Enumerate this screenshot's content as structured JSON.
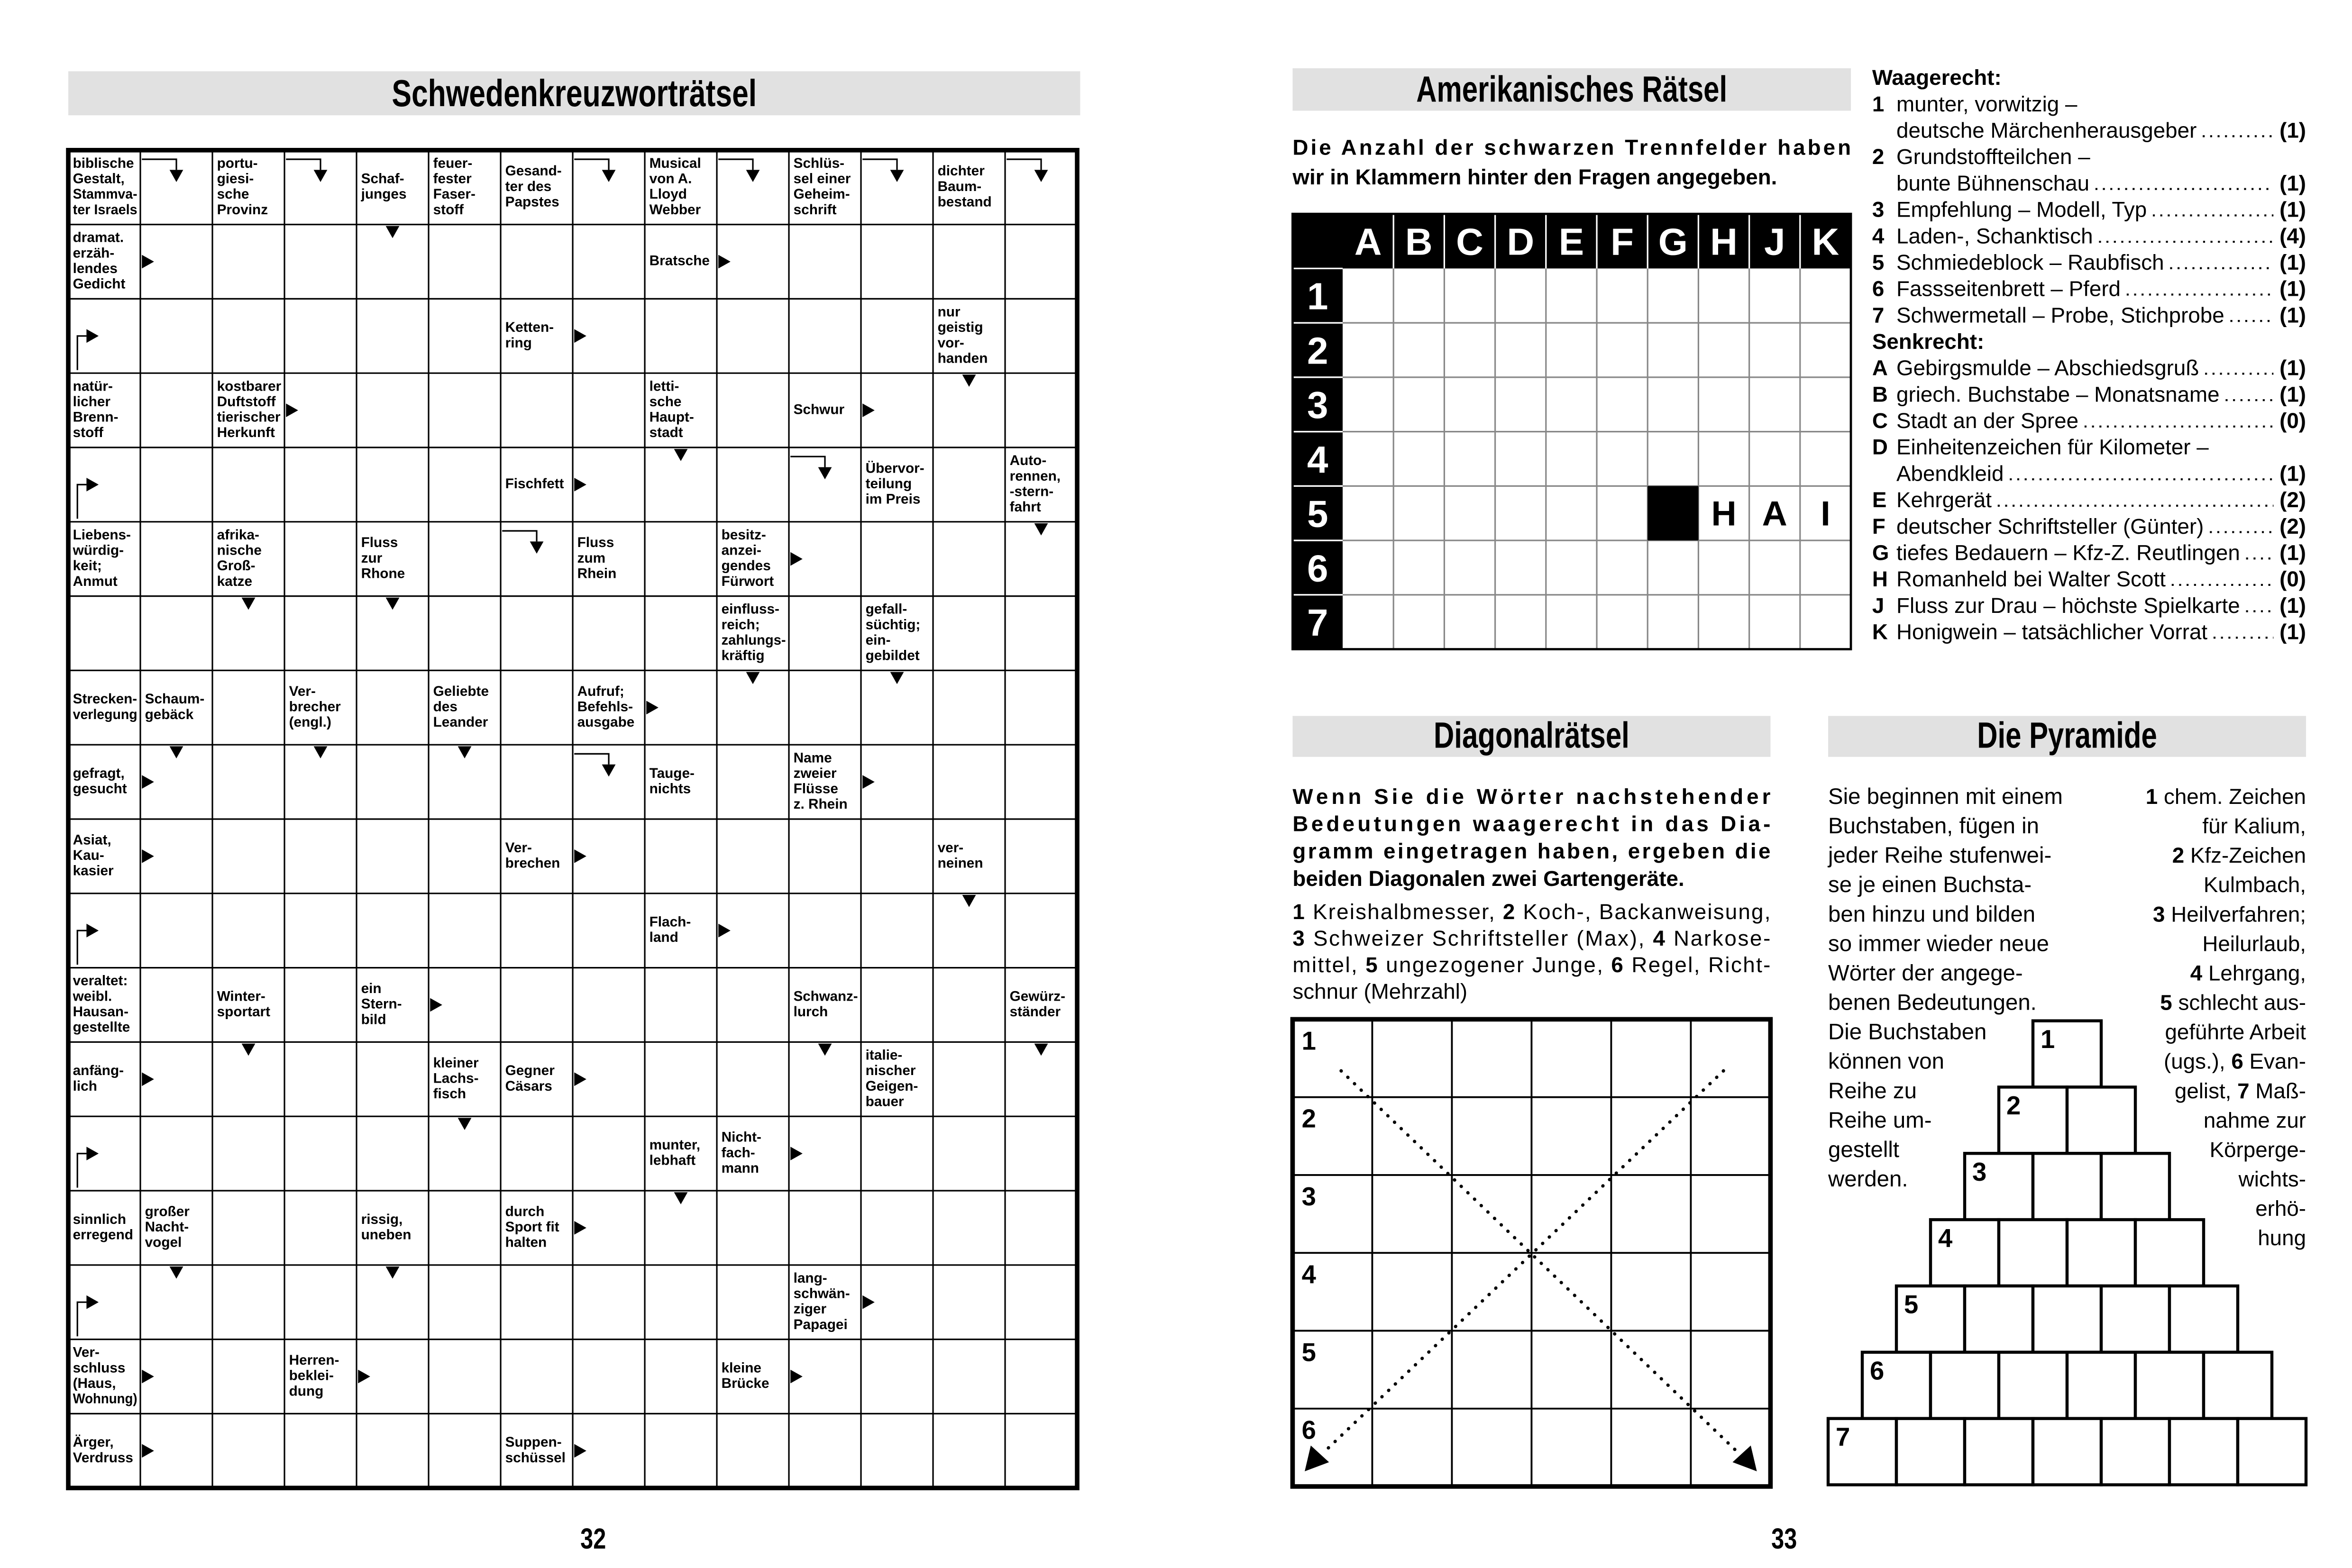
{
  "left_page": {
    "title": "Schwedenkreuzworträtsel",
    "page_number": "32",
    "crossword": {
      "rows": [
        [
          [
            "biblische",
            "Gestalt,",
            "Stammva-",
            "ter Israels"
          ],
          null,
          [
            "portu-",
            "giesi-",
            "sche",
            "Provinz"
          ],
          null,
          [
            "Schaf-",
            "junges"
          ],
          [
            "feuer-",
            "fester",
            "Faser-",
            "stoff"
          ],
          [
            "Gesand-",
            "ter des",
            "Papstes"
          ],
          null,
          [
            "Musical",
            "von A.",
            "Lloyd",
            "Webber"
          ],
          null,
          [
            "Schlüs-",
            "sel einer",
            "Geheim-",
            "schrift"
          ],
          null,
          [
            "dichter",
            "Baum-",
            "bestand"
          ],
          null
        ],
        [
          [
            "dramat.",
            "erzäh-",
            "lendes",
            "Gedicht"
          ],
          null,
          null,
          null,
          null,
          null,
          null,
          null,
          [
            "Bratsche"
          ],
          null,
          null,
          null,
          null,
          null
        ],
        [
          null,
          null,
          null,
          null,
          null,
          null,
          [
            "Ketten-",
            "ring"
          ],
          null,
          null,
          null,
          null,
          null,
          [
            "nur",
            "geistig",
            "vor-",
            "handen"
          ],
          null
        ],
        [
          [
            "natür-",
            "licher",
            "Brenn-",
            "stoff"
          ],
          null,
          [
            "kostbarer",
            "Duftstoff",
            "tierischer",
            "Herkunft"
          ],
          null,
          null,
          null,
          null,
          null,
          [
            "letti-",
            "sche",
            "Haupt-",
            "stadt"
          ],
          null,
          [
            "Schwur"
          ],
          null,
          null,
          null
        ],
        [
          null,
          null,
          null,
          null,
          null,
          null,
          [
            "Fischfett"
          ],
          null,
          null,
          null,
          null,
          [
            "Übervor-",
            "teilung",
            "im Preis"
          ],
          null,
          [
            "Auto-",
            "rennen,",
            "-stern-",
            "fahrt"
          ]
        ],
        [
          [
            "Liebens-",
            "würdig-",
            "keit;",
            "Anmut"
          ],
          null,
          [
            "afrika-",
            "nische",
            "Groß-",
            "katze"
          ],
          null,
          [
            "Fluss",
            "zur",
            "Rhone"
          ],
          null,
          null,
          [
            "Fluss",
            "zum",
            "Rhein"
          ],
          null,
          [
            "besitz-",
            "anzei-",
            "gendes",
            "Fürwort"
          ],
          null,
          null,
          null,
          null
        ],
        [
          null,
          null,
          null,
          null,
          null,
          null,
          null,
          null,
          null,
          [
            "einfluss-",
            "reich;",
            "zahlungs-",
            "kräftig"
          ],
          null,
          [
            "gefall-",
            "süchtig;",
            "ein-",
            "gebildet"
          ],
          null,
          null
        ],
        [
          [
            "Strecken-",
            "verlegung"
          ],
          [
            "Schaum-",
            "gebäck"
          ],
          null,
          [
            "Ver-",
            "brecher",
            "(engl.)"
          ],
          null,
          [
            "Geliebte",
            "des",
            "Leander"
          ],
          null,
          [
            "Aufruf;",
            "Befehls-",
            "ausgabe"
          ],
          null,
          null,
          null,
          null,
          null,
          null
        ],
        [
          [
            "gefragt,",
            "gesucht"
          ],
          null,
          null,
          null,
          null,
          null,
          null,
          null,
          [
            "Tauge-",
            "nichts"
          ],
          null,
          [
            "Name",
            "zweier",
            "Flüsse",
            "z. Rhein"
          ],
          null,
          null,
          null
        ],
        [
          [
            "Asiat,",
            "Kau-",
            "kasier"
          ],
          null,
          null,
          null,
          null,
          null,
          [
            "Ver-",
            "brechen"
          ],
          null,
          null,
          null,
          null,
          null,
          [
            "ver-",
            "neinen"
          ],
          null
        ],
        [
          null,
          null,
          null,
          null,
          null,
          null,
          null,
          null,
          [
            "Flach-",
            "land"
          ],
          null,
          null,
          null,
          null,
          null
        ],
        [
          [
            "veraltet:",
            "weibl.",
            "Hausan-",
            "gestellte"
          ],
          null,
          [
            "Winter-",
            "sportart"
          ],
          null,
          [
            "ein",
            "Stern-",
            "bild"
          ],
          null,
          null,
          null,
          null,
          null,
          [
            "Schwanz-",
            "lurch"
          ],
          null,
          null,
          [
            "Gewürz-",
            "ständer"
          ]
        ],
        [
          [
            "anfäng-",
            "lich"
          ],
          null,
          null,
          null,
          null,
          [
            "kleiner",
            "Lachs-",
            "fisch"
          ],
          [
            "Gegner",
            "Cäsars"
          ],
          null,
          null,
          null,
          null,
          [
            "italie-",
            "nischer",
            "Geigen-",
            "bauer"
          ],
          null,
          null
        ],
        [
          null,
          null,
          null,
          null,
          null,
          null,
          null,
          null,
          [
            "munter,",
            "lebhaft"
          ],
          [
            "Nicht-",
            "fach-",
            "mann"
          ],
          null,
          null,
          null,
          null
        ],
        [
          [
            "sinnlich",
            "erregend"
          ],
          [
            "großer",
            "Nacht-",
            "vogel"
          ],
          null,
          null,
          [
            "rissig,",
            "uneben"
          ],
          null,
          [
            "durch",
            "Sport fit",
            "halten"
          ],
          null,
          null,
          null,
          null,
          null,
          null,
          null
        ],
        [
          null,
          null,
          null,
          null,
          null,
          null,
          null,
          null,
          null,
          null,
          [
            "lang-",
            "schwän-",
            "ziger",
            "Papagei"
          ],
          null,
          null,
          null
        ],
        [
          [
            "Ver-",
            "schluss",
            "(Haus,",
            "Wohnung)"
          ],
          null,
          null,
          [
            "Herren-",
            "beklei-",
            "dung"
          ],
          null,
          null,
          null,
          null,
          null,
          [
            "kleine",
            "Brücke"
          ],
          null,
          null,
          null,
          null
        ],
        [
          [
            "Ärger,",
            "Verdruss"
          ],
          null,
          null,
          null,
          null,
          null,
          [
            "Suppen-",
            "schüssel"
          ],
          null,
          null,
          null,
          null,
          null,
          null,
          null
        ]
      ]
    }
  },
  "right_page": {
    "page_number": "33",
    "american": {
      "title": "Amerikanisches Rätsel",
      "intro": [
        "Die Anzahl der schwarzen Trennfelder haben",
        "wir in Klammern hinter den Fragen angegeben."
      ],
      "column_letters": [
        "A",
        "B",
        "C",
        "D",
        "E",
        "F",
        "G",
        "H",
        "J",
        "K"
      ],
      "row_labels": [
        "1",
        "2",
        "3",
        "4",
        "5",
        "6",
        "7"
      ],
      "grid": [
        [
          null,
          null,
          null,
          null,
          null,
          null,
          null,
          null,
          null,
          null
        ],
        [
          null,
          null,
          null,
          null,
          null,
          null,
          null,
          null,
          null,
          null
        ],
        [
          null,
          null,
          null,
          null,
          null,
          null,
          null,
          null,
          null,
          null
        ],
        [
          null,
          null,
          null,
          null,
          null,
          null,
          null,
          null,
          null,
          null
        ],
        [
          null,
          null,
          null,
          null,
          null,
          null,
          {
            "black": true
          },
          "H",
          "A",
          "I"
        ],
        [
          null,
          null,
          null,
          null,
          null,
          null,
          null,
          null,
          null,
          null
        ],
        [
          null,
          null,
          null,
          null,
          null,
          null,
          null,
          null,
          null,
          null
        ]
      ],
      "across": {
        "heading": "Waagerecht:",
        "entries": [
          {
            "number": "1",
            "lines": [
              "munter, vorwitzig –",
              "deutsche Märchenherausgeber"
            ],
            "count": "(1)"
          },
          {
            "number": "2",
            "lines": [
              "Grundstoffteilchen –",
              "bunte Bühnenschau"
            ],
            "count": "(1)"
          },
          {
            "number": "3",
            "lines": [
              "Empfehlung – Modell, Typ"
            ],
            "count": "(1)"
          },
          {
            "number": "4",
            "lines": [
              "Laden-, Schanktisch"
            ],
            "count": "(4)"
          },
          {
            "number": "5",
            "lines": [
              "Schmiedeblock – Raubfisch"
            ],
            "count": "(1)"
          },
          {
            "number": "6",
            "lines": [
              "Fassseitenbrett – Pferd"
            ],
            "count": "(1)"
          },
          {
            "number": "7",
            "lines": [
              "Schwermetall – Probe, Stichprobe"
            ],
            "count": "(1)"
          }
        ]
      },
      "down": {
        "heading": "Senkrecht:",
        "entries": [
          {
            "number": "A",
            "lines": [
              "Gebirgsmulde – Abschiedsgruß"
            ],
            "count": "(1)"
          },
          {
            "number": "B",
            "lines": [
              "griech. Buchstabe – Monatsname"
            ],
            "count": "(1)"
          },
          {
            "number": "C",
            "lines": [
              "Stadt an der Spree"
            ],
            "count": "(0)"
          },
          {
            "number": "D",
            "lines": [
              "Einheitenzeichen für Kilometer –",
              "Abendkleid"
            ],
            "count": "(1)"
          },
          {
            "number": "E",
            "lines": [
              "Kehrgerät"
            ],
            "count": "(2)"
          },
          {
            "number": "F",
            "lines": [
              "deutscher Schriftsteller (Günter)"
            ],
            "count": "(2)"
          },
          {
            "number": "G",
            "lines": [
              "tiefes Bedauern – Kfz-Z. Reutlingen"
            ],
            "count": "(1)"
          },
          {
            "number": "H",
            "lines": [
              "Romanheld bei Walter Scott"
            ],
            "count": "(0)"
          },
          {
            "number": "J",
            "lines": [
              "Fluss zur Drau – höchste Spielkarte"
            ],
            "count": "(1)"
          },
          {
            "number": "K",
            "lines": [
              "Honigwein – tatsächlicher Vorrat"
            ],
            "count": "(1)"
          }
        ]
      }
    },
    "diagonal": {
      "title": "Diagonalrätsel",
      "intro": [
        "Wenn Sie die Wörter nachstehender",
        "Bedeutungen waagerecht in das Dia-",
        "gramm eingetragen haben, ergeben die",
        "beiden Diagonalen zwei Gartengeräte."
      ],
      "clues": [
        [
          {
            "text": "1",
            "bold": true
          },
          {
            "text": " Kreishalbmesser, "
          },
          {
            "text": "2",
            "bold": true
          },
          {
            "text": " Koch-, Backanweisung,"
          }
        ],
        [
          {
            "text": "3",
            "bold": true
          },
          {
            "text": " Schweizer Schriftsteller (Max), "
          },
          {
            "text": "4",
            "bold": true
          },
          {
            "text": " Narkose-"
          }
        ],
        [
          {
            "text": "mittel, "
          },
          {
            "text": "5",
            "bold": true
          },
          {
            "text": " ungezogener Junge, "
          },
          {
            "text": "6",
            "bold": true
          },
          {
            "text": " Regel, Richt-"
          }
        ],
        [
          {
            "text": "schnur (Mehrzahl)"
          }
        ]
      ],
      "row_labels": [
        "1",
        "2",
        "3",
        "4",
        "5",
        "6"
      ]
    },
    "pyramid": {
      "title": "Die Pyramide",
      "instructions": [
        "Sie beginnen mit einem",
        "Buchstaben, fügen in",
        "jeder Reihe stufenwei-",
        "se je einen Buchsta-",
        "ben hinzu und bilden",
        "so immer wieder neue",
        "Wörter der angege-",
        "benen Bedeutungen.",
        "Die Buchstaben",
        "können von",
        "Reihe zu",
        "Reihe um-",
        "gestellt",
        "werden."
      ],
      "clues": [
        [
          {
            "text": "1",
            "bold": true
          },
          {
            "text": " chem. Zeichen"
          }
        ],
        [
          {
            "text": "für Kalium,"
          }
        ],
        [
          {
            "text": "2",
            "bold": true
          },
          {
            "text": " Kfz-Zeichen"
          }
        ],
        [
          {
            "text": "Kulmbach,"
          }
        ],
        [
          {
            "text": "3",
            "bold": true
          },
          {
            "text": " Heilverfahren;"
          }
        ],
        [
          {
            "text": "Heilurlaub,"
          }
        ],
        [
          {
            "text": "4",
            "bold": true
          },
          {
            "text": " Lehrgang,"
          }
        ],
        [
          {
            "text": "5",
            "bold": true
          },
          {
            "text": " schlecht aus-"
          }
        ],
        [
          {
            "text": "geführte Arbeit"
          }
        ],
        [
          {
            "text": "(ugs.), "
          },
          {
            "text": "6",
            "bold": true
          },
          {
            "text": " Evan-"
          }
        ],
        [
          {
            "text": "gelist, "
          },
          {
            "text": "7",
            "bold": true
          },
          {
            "text": " Maß-"
          }
        ],
        [
          {
            "text": "nahme zur"
          }
        ],
        [
          {
            "text": "Körperge-"
          }
        ],
        [
          {
            "text": "wichts-"
          }
        ],
        [
          {
            "text": "erhö-"
          }
        ],
        [
          {
            "text": "hung"
          }
        ]
      ],
      "row_labels": [
        "1",
        "2",
        "3",
        "4",
        "5",
        "6",
        "7"
      ]
    }
  }
}
